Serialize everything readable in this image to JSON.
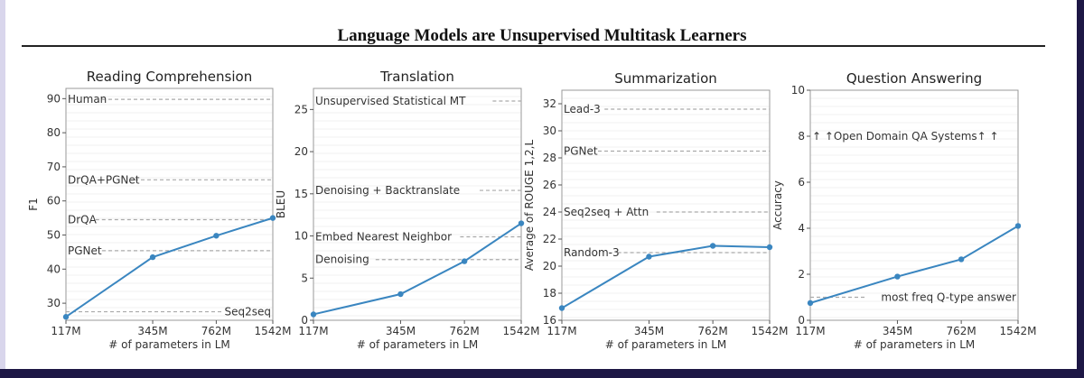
{
  "page": {
    "title": "Language Models are Unsupervised Multitask Learners",
    "colors": {
      "series": "#3a86c0",
      "reference_line": "#aaaaaa",
      "frame": "#1d1745",
      "strip": "#d9d6ec"
    }
  },
  "chart_data": [
    {
      "type": "line",
      "title": "Reading Comprehension",
      "xlabel": "# of parameters in LM",
      "ylabel": "F1",
      "categories": [
        "117M",
        "345M",
        "762M",
        "1542M"
      ],
      "x_log": [
        117,
        345,
        762,
        1542
      ],
      "values": [
        26,
        43.5,
        49.8,
        55
      ],
      "ylim": [
        25,
        93
      ],
      "yticks": [
        30,
        40,
        50,
        60,
        70,
        80,
        90
      ],
      "grid": true,
      "reference_lines": [
        {
          "label": "Human",
          "value": 89.8,
          "label_pos": "left"
        },
        {
          "label": "DrQA+PGNet",
          "value": 66.2,
          "label_pos": "left"
        },
        {
          "label": "DrQA",
          "value": 54.5,
          "label_pos": "left"
        },
        {
          "label": "PGNet",
          "value": 45.4,
          "label_pos": "left"
        },
        {
          "label": "Seq2seq",
          "value": 27.5,
          "label_pos": "right"
        }
      ]
    },
    {
      "type": "line",
      "title": "Translation",
      "xlabel": "# of parameters in LM",
      "ylabel": "BLEU",
      "categories": [
        "117M",
        "345M",
        "762M",
        "1542M"
      ],
      "x_log": [
        117,
        345,
        762,
        1542
      ],
      "values": [
        0.7,
        3.1,
        7.0,
        11.5
      ],
      "ylim": [
        0,
        27.5
      ],
      "yticks": [
        0,
        5,
        10,
        15,
        20,
        25
      ],
      "grid": true,
      "reference_lines": [
        {
          "label": "Unsupervised Statistical MT",
          "value": 26.0,
          "label_pos": "left"
        },
        {
          "label": "Denoising + Backtranslate",
          "value": 15.4,
          "label_pos": "left"
        },
        {
          "label": "Embed Nearest Neighbor",
          "value": 9.9,
          "label_pos": "left"
        },
        {
          "label": "Denoising",
          "value": 7.2,
          "label_pos": "left"
        }
      ]
    },
    {
      "type": "line",
      "title": "Summarization",
      "xlabel": "# of parameters in LM",
      "ylabel": "Average of ROUGE 1,2,L",
      "categories": [
        "117M",
        "345M",
        "762M",
        "1542M"
      ],
      "x_log": [
        117,
        345,
        762,
        1542
      ],
      "values": [
        16.9,
        20.7,
        21.5,
        21.4
      ],
      "ylim": [
        16,
        33
      ],
      "yticks": [
        16,
        18,
        20,
        22,
        24,
        26,
        28,
        30,
        32
      ],
      "grid": true,
      "reference_lines": [
        {
          "label": "Lead-3",
          "value": 31.6,
          "label_pos": "left"
        },
        {
          "label": "PGNet",
          "value": 28.5,
          "label_pos": "left"
        },
        {
          "label": "Seq2seq + Attn",
          "value": 24.0,
          "label_pos": "left"
        },
        {
          "label": "Random-3",
          "value": 21.0,
          "label_pos": "left"
        }
      ]
    },
    {
      "type": "line",
      "title": "Question Answering",
      "xlabel": "# of parameters in LM",
      "ylabel": "Accuracy",
      "categories": [
        "117M",
        "345M",
        "762M",
        "1542M"
      ],
      "x_log": [
        117,
        345,
        762,
        1542
      ],
      "values": [
        0.75,
        1.9,
        2.65,
        4.1
      ],
      "ylim": [
        0,
        10
      ],
      "yticks": [
        0,
        2,
        4,
        6,
        8,
        10
      ],
      "grid": true,
      "annotations": [
        {
          "label": "↑ ↑Open Domain QA Systems↑ ↑",
          "value": 8
        }
      ],
      "reference_lines": [
        {
          "label": "most freq Q-type answer",
          "value": 1.0,
          "label_pos": "right"
        }
      ]
    }
  ]
}
